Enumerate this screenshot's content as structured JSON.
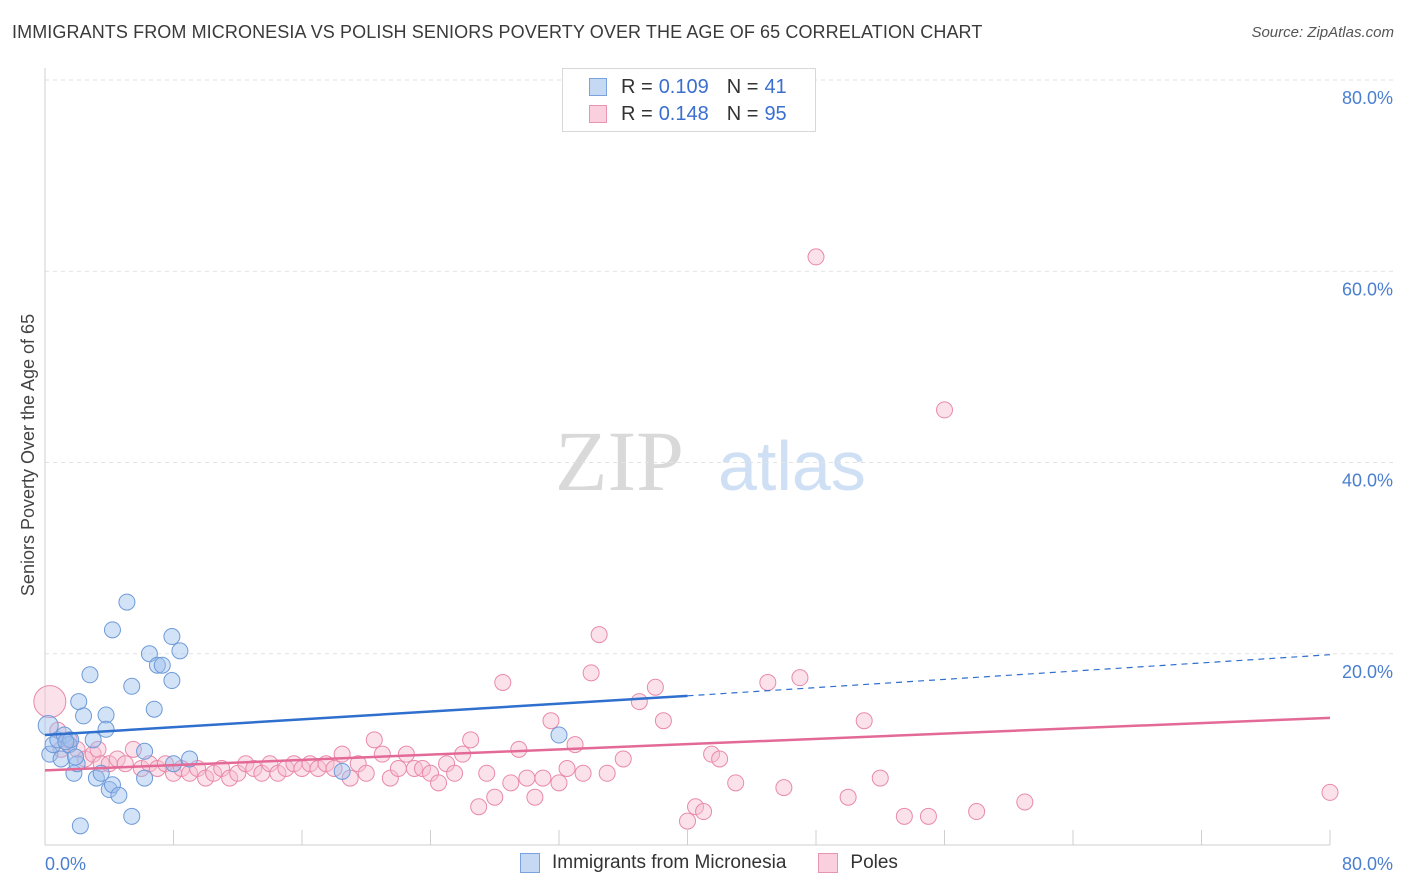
{
  "title": "IMMIGRANTS FROM MICRONESIA VS POLISH SENIORS POVERTY OVER THE AGE OF 65 CORRELATION CHART",
  "source": "Source: ZipAtlas.com",
  "watermark": {
    "zip": "ZIP",
    "atlas": "atlas"
  },
  "legend": {
    "r_label": "R =",
    "n_label": "N =",
    "rows": [
      {
        "r": "0.109",
        "n": "41",
        "color": "#9bbfee",
        "border": "#6e9ad8"
      },
      {
        "r": "0.148",
        "n": "95",
        "color": "#f7bcd0",
        "border": "#e98aaa"
      }
    ]
  },
  "bottom_legend": [
    {
      "label": "Immigrants from Micronesia",
      "color": "#c5d9f5",
      "border": "#7aa3de"
    },
    {
      "label": "Poles",
      "color": "#fad0de",
      "border": "#e895b2"
    }
  ],
  "chart_data": {
    "type": "scatter",
    "title": "IMMIGRANTS FROM MICRONESIA VS POLISH SENIORS POVERTY OVER THE AGE OF 65 CORRELATION CHART",
    "xlabel": "",
    "ylabel": "Seniors Poverty Over the Age of 65",
    "xlim": [
      0,
      80
    ],
    "ylim": [
      0,
      80
    ],
    "x_tick_labels": [
      "0.0%",
      "80.0%"
    ],
    "y_ticks": [
      20,
      40,
      60,
      80
    ],
    "y_tick_labels": [
      "20.0%",
      "40.0%",
      "60.0%",
      "80.0%"
    ],
    "grid": true,
    "series": [
      {
        "name": "Immigrants from Micronesia",
        "color": "#7fa9e6",
        "line_color": "#2f6fce",
        "trend": {
          "x0": 0,
          "y0": 11.5,
          "x1": 40,
          "y1": 15.6,
          "dash_to_x": 80,
          "dash_to_y": 19.9
        },
        "points": [
          [
            0.2,
            12.5
          ],
          [
            0.3,
            9.5
          ],
          [
            0.5,
            10.5
          ],
          [
            0.8,
            11
          ],
          [
            1.0,
            9
          ],
          [
            1.2,
            11.5
          ],
          [
            1.5,
            10.5
          ],
          [
            1.6,
            11
          ],
          [
            1.8,
            7.5
          ],
          [
            2.0,
            8.5
          ],
          [
            2.1,
            15
          ],
          [
            2.2,
            2
          ],
          [
            2.4,
            13.5
          ],
          [
            2.8,
            17.8
          ],
          [
            3.0,
            11
          ],
          [
            3.2,
            7
          ],
          [
            3.5,
            7.5
          ],
          [
            3.8,
            13.6
          ],
          [
            3.8,
            12.1
          ],
          [
            4.2,
            22.5
          ],
          [
            4.0,
            5.8
          ],
          [
            4.2,
            6.3
          ],
          [
            4.6,
            5.2
          ],
          [
            5.1,
            25.4
          ],
          [
            5.4,
            3
          ],
          [
            5.4,
            16.6
          ],
          [
            6.2,
            7
          ],
          [
            6.2,
            9.8
          ],
          [
            6.5,
            20
          ],
          [
            6.8,
            14.2
          ],
          [
            7.0,
            18.8
          ],
          [
            7.3,
            18.8
          ],
          [
            7.9,
            21.8
          ],
          [
            7.9,
            17.2
          ],
          [
            8.4,
            20.3
          ],
          [
            9.0,
            9
          ],
          [
            8.0,
            8.5
          ],
          [
            18.5,
            7.7
          ],
          [
            32.0,
            11.5
          ],
          [
            1.3,
            10.8
          ],
          [
            1.9,
            9.2
          ]
        ]
      },
      {
        "name": "Poles",
        "color": "#f2a5bf",
        "line_color": "#e36a97",
        "trend": {
          "x0": 0,
          "y0": 7.8,
          "x1": 80,
          "y1": 13.3
        },
        "points": [
          [
            0.3,
            15
          ],
          [
            0.8,
            12
          ],
          [
            1.0,
            10
          ],
          [
            1.5,
            11
          ],
          [
            2.0,
            10
          ],
          [
            2.5,
            9
          ],
          [
            3.0,
            9.5
          ],
          [
            3.3,
            10
          ],
          [
            3.5,
            8.5
          ],
          [
            4.0,
            8.5
          ],
          [
            4.5,
            9
          ],
          [
            5.0,
            8.5
          ],
          [
            5.5,
            10
          ],
          [
            6.0,
            8
          ],
          [
            6.5,
            8.5
          ],
          [
            7.0,
            8
          ],
          [
            7.5,
            8.5
          ],
          [
            8.0,
            7.5
          ],
          [
            8.5,
            8
          ],
          [
            9.0,
            7.5
          ],
          [
            9.5,
            8
          ],
          [
            10.0,
            7
          ],
          [
            10.5,
            7.5
          ],
          [
            11.0,
            8
          ],
          [
            11.5,
            7
          ],
          [
            12.0,
            7.5
          ],
          [
            12.5,
            8.5
          ],
          [
            13.0,
            8
          ],
          [
            13.5,
            7.5
          ],
          [
            14.0,
            8.5
          ],
          [
            14.5,
            7.5
          ],
          [
            15.0,
            8
          ],
          [
            15.5,
            8.5
          ],
          [
            16.0,
            8
          ],
          [
            16.5,
            8.5
          ],
          [
            17.0,
            8
          ],
          [
            17.5,
            8.5
          ],
          [
            18.0,
            8
          ],
          [
            18.5,
            9.5
          ],
          [
            19.0,
            7
          ],
          [
            19.5,
            8.5
          ],
          [
            20.0,
            7.5
          ],
          [
            20.5,
            11
          ],
          [
            21.0,
            9.5
          ],
          [
            21.5,
            7
          ],
          [
            22.0,
            8
          ],
          [
            22.5,
            9.5
          ],
          [
            23.0,
            8
          ],
          [
            23.5,
            8
          ],
          [
            24.0,
            7.5
          ],
          [
            24.5,
            6.5
          ],
          [
            25.0,
            8.5
          ],
          [
            25.5,
            7.5
          ],
          [
            26.0,
            9.5
          ],
          [
            26.5,
            11
          ],
          [
            27.0,
            4
          ],
          [
            27.5,
            7.5
          ],
          [
            28.0,
            5
          ],
          [
            28.5,
            17
          ],
          [
            29.0,
            6.5
          ],
          [
            29.5,
            10
          ],
          [
            30.0,
            7
          ],
          [
            30.5,
            5
          ],
          [
            31.0,
            7
          ],
          [
            31.5,
            13
          ],
          [
            32.0,
            6.5
          ],
          [
            32.5,
            8
          ],
          [
            33.0,
            10.5
          ],
          [
            33.5,
            7.5
          ],
          [
            34.0,
            18
          ],
          [
            34.5,
            22
          ],
          [
            35.0,
            7.5
          ],
          [
            36.0,
            9
          ],
          [
            37.0,
            15
          ],
          [
            38.0,
            16.5
          ],
          [
            38.5,
            13
          ],
          [
            40.0,
            2.5
          ],
          [
            40.5,
            4
          ],
          [
            41.0,
            3.5
          ],
          [
            41.5,
            9.5
          ],
          [
            42.0,
            9
          ],
          [
            43.0,
            6.5
          ],
          [
            45.0,
            17
          ],
          [
            46.0,
            6
          ],
          [
            47.0,
            17.5
          ],
          [
            48.0,
            61.5
          ],
          [
            50.0,
            5
          ],
          [
            51.0,
            13
          ],
          [
            52.0,
            7
          ],
          [
            53.5,
            3
          ],
          [
            55.0,
            3
          ],
          [
            56.0,
            45.5
          ],
          [
            58.0,
            3.5
          ],
          [
            61.0,
            4.5
          ],
          [
            80.0,
            5.5
          ]
        ]
      }
    ]
  }
}
